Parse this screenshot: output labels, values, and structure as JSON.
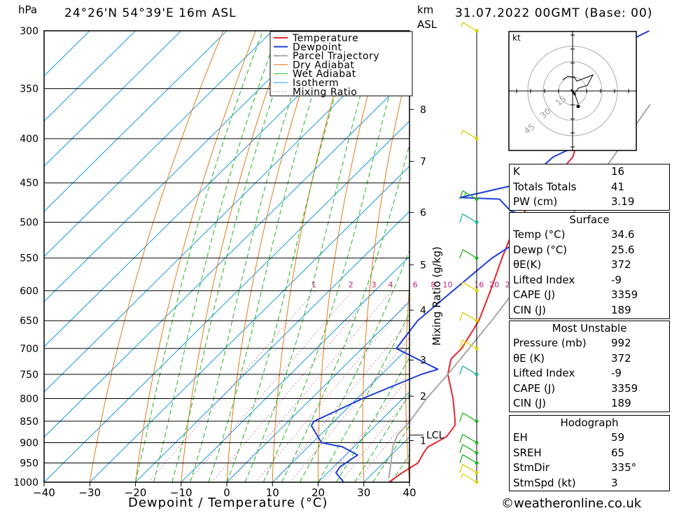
{
  "header": {
    "pressure_unit": "hPa",
    "location": "24°26'N  54°39'E  16m  ASL",
    "height_unit_line1": "km",
    "height_unit_line2": "ASL",
    "datetime": "31.07.2022  00GMT  (Base: 00)"
  },
  "colors": {
    "temperature": "#e8262d",
    "dewpoint": "#1f3fd9",
    "parcel": "#a8a8a8",
    "dry_adiabat": "#e07a1a",
    "wet_adiabat": "#21b321",
    "isotherm": "#1a9be0",
    "mixing_ratio": "#c0207a",
    "wind_green": "#21b321",
    "wind_yellow": "#d9d000",
    "wind_cyan": "#19b3a0"
  },
  "chart_data": {
    "type": "line",
    "title": "24°26'N 54°39'E 16m ASL",
    "xlabel": "Dewpoint / Temperature (°C)",
    "ylabel": "hPa",
    "xlim": [
      -40,
      40
    ],
    "ylim": [
      1000,
      300
    ],
    "log_scale_y": true,
    "grid": true,
    "legend_placement": "top-right",
    "x_ticks": [
      "−40",
      "−30",
      "−20",
      "−10",
      "0",
      "10",
      "20",
      "30",
      "40"
    ],
    "pressure_levels": [
      300,
      350,
      400,
      450,
      500,
      550,
      600,
      650,
      700,
      750,
      800,
      850,
      900,
      950,
      1000
    ],
    "height_km_labels": [
      {
        "label": "8",
        "p": 370
      },
      {
        "label": "7",
        "p": 425
      },
      {
        "label": "6",
        "p": 487
      },
      {
        "label": "5",
        "p": 560
      },
      {
        "label": "4",
        "p": 632
      },
      {
        "label": "3",
        "p": 722
      },
      {
        "label": "2",
        "p": 795
      },
      {
        "label": "1",
        "p": 895
      }
    ],
    "lcl_label": "LCL",
    "lcl_pressure": 882,
    "mixing_ratio_axis_label": "Mixing Ratio (g/kg)",
    "mixing_ratio_values": [
      "1",
      "2",
      "3",
      "4",
      "6",
      "8",
      "10",
      "16",
      "20",
      "25"
    ],
    "legend": [
      "Temperature",
      "Dewpoint",
      "Parcel Trajectory",
      "Dry Adiabat",
      "Wet Adiabat",
      "Isotherm",
      "Mixing Ratio"
    ],
    "series": [
      {
        "name": "Temperature",
        "points": [
          [
            1000,
            35.5
          ],
          [
            975,
            36.3
          ],
          [
            950,
            37.6
          ],
          [
            925,
            36.6
          ],
          [
            910,
            36.2
          ],
          [
            900,
            37.0
          ],
          [
            885,
            38.0
          ],
          [
            860,
            37.4
          ],
          [
            850,
            36.5
          ],
          [
            800,
            31.0
          ],
          [
            750,
            24.5
          ],
          [
            720,
            21.8
          ],
          [
            700,
            21.8
          ],
          [
            650,
            19.4
          ],
          [
            600,
            15.3
          ],
          [
            550,
            10.6
          ],
          [
            500,
            5.8
          ],
          [
            475,
            4.8
          ],
          [
            450,
            4.6
          ],
          [
            420,
            3.7
          ],
          [
            400,
            0.9
          ],
          [
            380,
            1.5
          ],
          [
            365,
            0.4
          ]
        ]
      },
      {
        "name": "Dewpoint",
        "points": [
          [
            1000,
            25.6
          ],
          [
            975,
            21.8
          ],
          [
            960,
            21.4
          ],
          [
            930,
            22.6
          ],
          [
            910,
            17.5
          ],
          [
            900,
            12.0
          ],
          [
            860,
            6.0
          ],
          [
            850,
            5.6
          ],
          [
            800,
            11.2
          ],
          [
            750,
            18.7
          ],
          [
            740,
            21.2
          ],
          [
            700,
            7.5
          ],
          [
            650,
            6.0
          ],
          [
            600,
            7.1
          ],
          [
            550,
            8.4
          ],
          [
            500,
            12.6
          ],
          [
            485,
            2.0
          ],
          [
            470,
            -3.0
          ],
          [
            468,
            -12.0
          ],
          [
            450,
            -1.2
          ],
          [
            420,
            -0.6
          ],
          [
            400,
            3.9
          ],
          [
            380,
            -7.7
          ],
          [
            360,
            -7.7
          ],
          [
            350,
            -20.5
          ],
          [
            300,
            -7.5
          ]
        ]
      },
      {
        "name": "Parcel Trajectory",
        "points": [
          [
            990,
            34.6
          ],
          [
            950,
            31.7
          ],
          [
            930,
            30.1
          ],
          [
            910,
            28.5
          ],
          [
            882,
            26.9
          ],
          [
            850,
            26.6
          ],
          [
            800,
            25.2
          ],
          [
            750,
            24.5
          ],
          [
            700,
            23.4
          ],
          [
            650,
            22.2
          ],
          [
            600,
            20.6
          ],
          [
            550,
            18.9
          ],
          [
            500,
            16.8
          ],
          [
            450,
            14.3
          ],
          [
            400,
            11.3
          ],
          [
            365,
            9.0
          ]
        ]
      }
    ],
    "wind_barbs": [
      {
        "p": 1000,
        "speed_kt": 5,
        "color": "yellow"
      },
      {
        "p": 975,
        "speed_kt": 10,
        "color": "yellow"
      },
      {
        "p": 950,
        "speed_kt": 10,
        "color": "green"
      },
      {
        "p": 925,
        "speed_kt": 10,
        "color": "green"
      },
      {
        "p": 900,
        "speed_kt": 10,
        "color": "green"
      },
      {
        "p": 850,
        "speed_kt": 10,
        "color": "green"
      },
      {
        "p": 750,
        "speed_kt": 10,
        "color": "cyan"
      },
      {
        "p": 700,
        "speed_kt": 15,
        "color": "yellow"
      },
      {
        "p": 650,
        "speed_kt": 10,
        "color": "yellow"
      },
      {
        "p": 600,
        "speed_kt": 5,
        "color": "yellow"
      },
      {
        "p": 550,
        "speed_kt": 10,
        "color": "green"
      },
      {
        "p": 500,
        "speed_kt": 10,
        "color": "cyan"
      },
      {
        "p": 470,
        "speed_kt": 15,
        "color": "green"
      },
      {
        "p": 400,
        "speed_kt": 5,
        "color": "yellow"
      },
      {
        "p": 300,
        "speed_kt": 5,
        "color": "yellow"
      }
    ]
  },
  "hodograph": {
    "unit": "kt",
    "rings": [
      "15",
      "30",
      "45"
    ]
  },
  "stats": {
    "indices": [
      {
        "label": "K",
        "value": "16"
      },
      {
        "label": "Totals Totals",
        "value": "41"
      },
      {
        "label": "PW (cm)",
        "value": "3.19"
      }
    ],
    "surface": {
      "title": "Surface",
      "rows": [
        {
          "label": "Temp (°C)",
          "value": "34.6"
        },
        {
          "label": "Dewp (°C)",
          "value": "25.6"
        },
        {
          "label": "θE(K)",
          "value": "372"
        },
        {
          "label": "Lifted Index",
          "value": "-9"
        },
        {
          "label": "CAPE (J)",
          "value": "3359"
        },
        {
          "label": "CIN (J)",
          "value": "189"
        }
      ]
    },
    "most_unstable": {
      "title": "Most Unstable",
      "rows": [
        {
          "label": "Pressure (mb)",
          "value": "992"
        },
        {
          "label": "θE (K)",
          "value": "372"
        },
        {
          "label": "Lifted Index",
          "value": "-9"
        },
        {
          "label": "CAPE (J)",
          "value": "3359"
        },
        {
          "label": "CIN (J)",
          "value": "189"
        }
      ]
    },
    "hodograph": {
      "title": "Hodograph",
      "rows": [
        {
          "label": "EH",
          "value": "59"
        },
        {
          "label": "SREH",
          "value": "65"
        },
        {
          "label": "StmDir",
          "value": "335°"
        },
        {
          "label": "StmSpd (kt)",
          "value": "3"
        }
      ]
    }
  },
  "footer": {
    "copyright": "©weatheronline.co.uk"
  }
}
